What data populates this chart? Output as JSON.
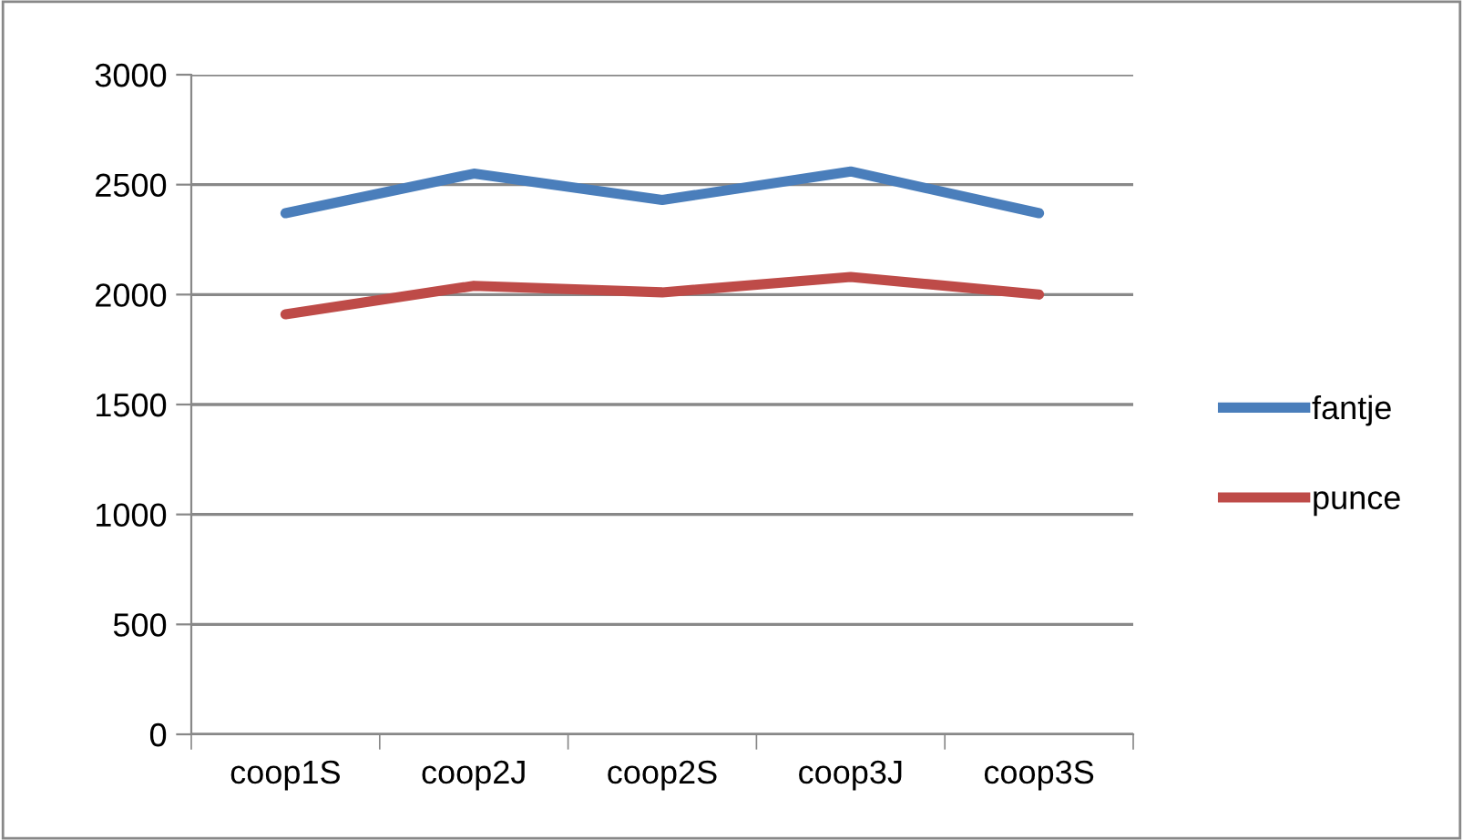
{
  "chart_data": {
    "type": "line",
    "categories": [
      "coop1S",
      "coop2J",
      "coop2S",
      "coop3J",
      "coop3S"
    ],
    "series": [
      {
        "name": "fantje",
        "color": "#4a7ebb",
        "values": [
          2370,
          2550,
          2430,
          2560,
          2370
        ]
      },
      {
        "name": "punce",
        "color": "#be4b48",
        "values": [
          1910,
          2040,
          2010,
          2080,
          2000
        ]
      }
    ],
    "ylim": [
      0,
      3000
    ],
    "yticks": [
      0,
      500,
      1000,
      1500,
      2000,
      2500,
      3000
    ],
    "grid": "y",
    "legend": "right",
    "marker": "none",
    "line_style": "solid"
  }
}
